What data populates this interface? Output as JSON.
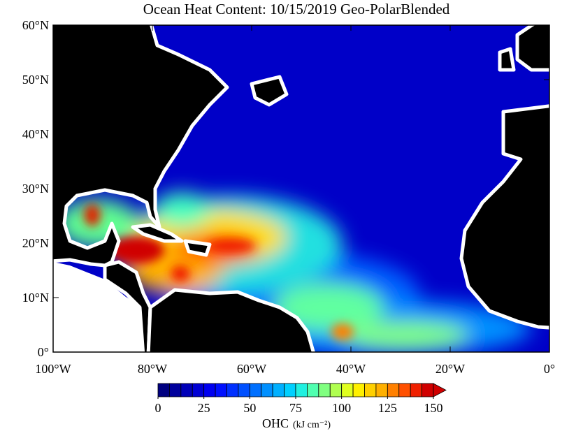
{
  "title": "Ocean Heat Content: 10/15/2019 Geo-PolarBlended",
  "map": {
    "xlim": [
      -100,
      0
    ],
    "ylim": [
      0,
      60
    ],
    "xticks": [
      {
        "value": -100,
        "label": "100°W"
      },
      {
        "value": -80,
        "label": "80°W"
      },
      {
        "value": -60,
        "label": "60°W"
      },
      {
        "value": -40,
        "label": "40°W"
      },
      {
        "value": -20,
        "label": "20°W"
      },
      {
        "value": 0,
        "label": "0°"
      }
    ],
    "yticks": [
      {
        "value": 0,
        "label": "0°"
      },
      {
        "value": 10,
        "label": "10°N"
      },
      {
        "value": 20,
        "label": "20°N"
      },
      {
        "value": 30,
        "label": "30°N"
      },
      {
        "value": 40,
        "label": "40°N"
      },
      {
        "value": 50,
        "label": "50°N"
      },
      {
        "value": 60,
        "label": "60°N"
      }
    ]
  },
  "colorbar": {
    "label": "OHC",
    "units": "(kJ cm⁻²)",
    "vlim": [
      0,
      150
    ],
    "ticks": [
      0,
      25,
      50,
      75,
      100,
      125,
      150
    ],
    "extend": "max",
    "colors": [
      "#000080",
      "#00009c",
      "#0000b8",
      "#0000d4",
      "#0000f0",
      "#0010ff",
      "#0030ff",
      "#0050ff",
      "#0070ff",
      "#0090ff",
      "#00b0ff",
      "#00d0ff",
      "#20f0e0",
      "#50ffb0",
      "#80ff80",
      "#b0ff50",
      "#e0ff20",
      "#fff000",
      "#ffd000",
      "#ffb000",
      "#ff8000",
      "#ff5000",
      "#f02000",
      "#d00000"
    ]
  }
}
